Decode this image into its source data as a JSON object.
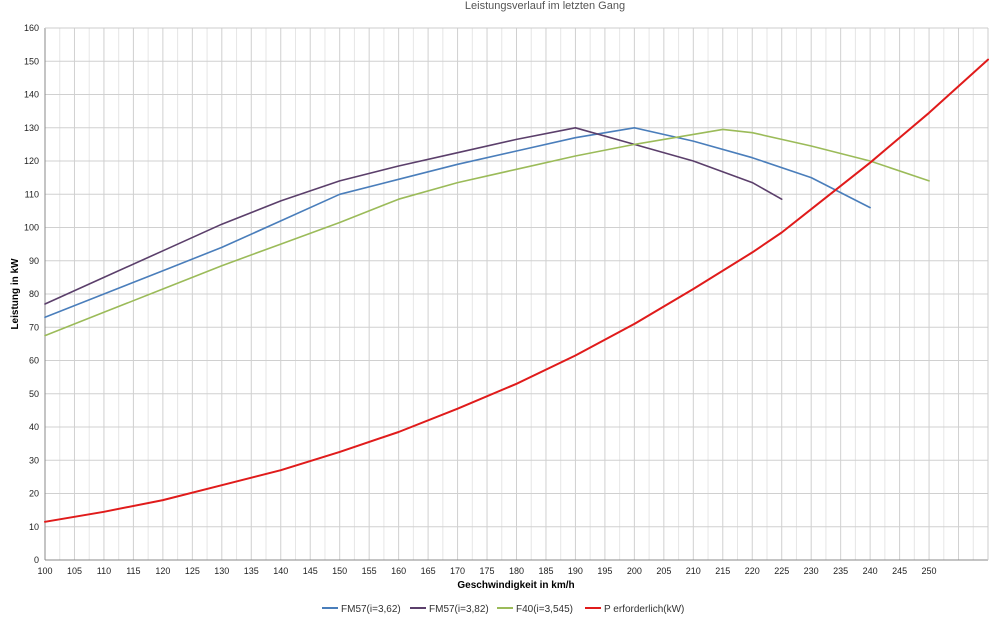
{
  "chart_data": {
    "type": "line",
    "title": "Leistungsverlauf im letzten Gang",
    "xlabel": "Geschwindigkeit in km/h",
    "ylabel": "Leistung in kW",
    "xlim": [
      100,
      260
    ],
    "ylim": [
      0,
      160
    ],
    "x_ticks": [
      100,
      105,
      110,
      115,
      120,
      125,
      130,
      135,
      140,
      145,
      150,
      155,
      160,
      165,
      170,
      175,
      180,
      185,
      190,
      195,
      200,
      205,
      210,
      215,
      220,
      225,
      230,
      235,
      240,
      245,
      250
    ],
    "y_ticks": [
      0,
      10,
      20,
      30,
      40,
      50,
      60,
      70,
      80,
      90,
      100,
      110,
      120,
      130,
      140,
      150,
      160
    ],
    "grid": true,
    "legend_position": "bottom",
    "series": [
      {
        "name": "FM57(i=3,62)",
        "color": "#4a7ebb",
        "points": [
          [
            100,
            73
          ],
          [
            110,
            80
          ],
          [
            120,
            87
          ],
          [
            130,
            94
          ],
          [
            140,
            102
          ],
          [
            150,
            110
          ],
          [
            160,
            114.5
          ],
          [
            170,
            119
          ],
          [
            180,
            123
          ],
          [
            190,
            127
          ],
          [
            200,
            130
          ],
          [
            210,
            126
          ],
          [
            220,
            121
          ],
          [
            230,
            115
          ],
          [
            240,
            106
          ]
        ]
      },
      {
        "name": "FM57(i=3,82)",
        "color": "#5b3f6b",
        "points": [
          [
            100,
            77
          ],
          [
            110,
            85
          ],
          [
            120,
            93
          ],
          [
            130,
            101
          ],
          [
            140,
            108
          ],
          [
            150,
            114
          ],
          [
            160,
            118.5
          ],
          [
            170,
            122.5
          ],
          [
            180,
            126.5
          ],
          [
            190,
            130
          ],
          [
            200,
            125
          ],
          [
            210,
            120
          ],
          [
            220,
            113.5
          ],
          [
            225,
            108.5
          ]
        ]
      },
      {
        "name": "F40(i=3,545)",
        "color": "#9bbb59",
        "points": [
          [
            100,
            67.5
          ],
          [
            110,
            74.5
          ],
          [
            120,
            81.5
          ],
          [
            130,
            88.5
          ],
          [
            140,
            95
          ],
          [
            150,
            101.5
          ],
          [
            160,
            108.5
          ],
          [
            170,
            113.5
          ],
          [
            180,
            117.5
          ],
          [
            190,
            121.5
          ],
          [
            200,
            125
          ],
          [
            210,
            128
          ],
          [
            215,
            129.5
          ],
          [
            220,
            128.5
          ],
          [
            230,
            124.5
          ],
          [
            240,
            120
          ],
          [
            250,
            114
          ]
        ]
      },
      {
        "name": "P erforderlich(kW)",
        "color": "#e01b1b",
        "points": [
          [
            100,
            11.5
          ],
          [
            110,
            14.5
          ],
          [
            120,
            18
          ],
          [
            130,
            22.5
          ],
          [
            140,
            27
          ],
          [
            150,
            32.5
          ],
          [
            160,
            38.5
          ],
          [
            170,
            45.5
          ],
          [
            180,
            53
          ],
          [
            190,
            61.5
          ],
          [
            200,
            71
          ],
          [
            210,
            81.5
          ],
          [
            220,
            92.5
          ],
          [
            225,
            98.5
          ],
          [
            230,
            105.5
          ],
          [
            240,
            119.5
          ],
          [
            250,
            134.5
          ],
          [
            260,
            150.5
          ]
        ]
      }
    ]
  }
}
